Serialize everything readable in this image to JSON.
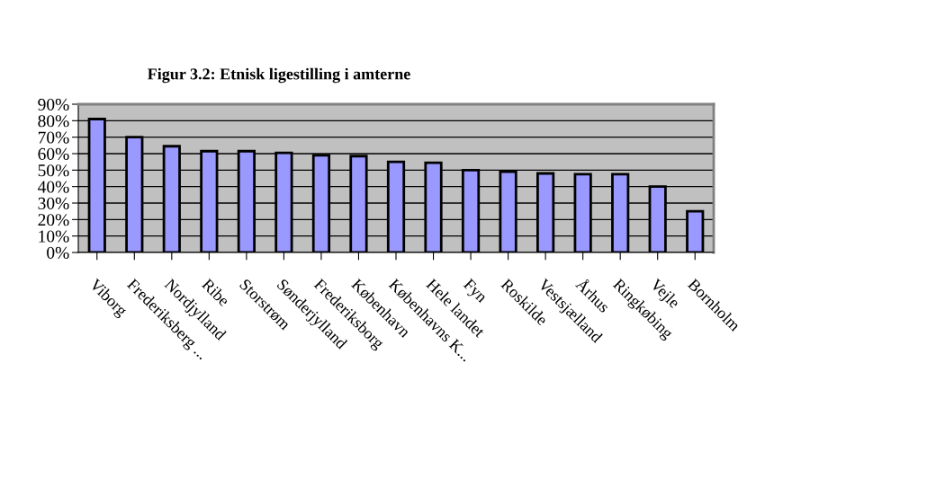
{
  "chart_data": {
    "type": "bar",
    "title": "Figur 3.2: Etnisk ligestilling i amterne",
    "categories": [
      "Viborg",
      "Frederiksberg ...",
      "Nordjylland",
      "Ribe",
      "Storstrøm",
      "Sønderjylland",
      "Frederiksborg",
      "København",
      "Københavns K...",
      "Hele landet",
      "Fyn",
      "Roskilde",
      "Vestsjælland",
      "Århus",
      "Ringkøbing",
      "Vejle",
      "Bornholm"
    ],
    "values": [
      81,
      70,
      64.5,
      61.5,
      61.5,
      60.5,
      59,
      58.5,
      55,
      54.5,
      50,
      49,
      48,
      47.5,
      47.5,
      40,
      25
    ],
    "color": "#9999ff",
    "ylim": [
      0,
      90
    ],
    "yticks": [
      {
        "value": 0,
        "label": "0%"
      },
      {
        "value": 10,
        "label": "10%"
      },
      {
        "value": 20,
        "label": "20%"
      },
      {
        "value": 30,
        "label": "30%"
      },
      {
        "value": 40,
        "label": "40%"
      },
      {
        "value": 50,
        "label": "50%"
      },
      {
        "value": 60,
        "label": "60%"
      },
      {
        "value": 70,
        "label": "70%"
      },
      {
        "value": 80,
        "label": "80%"
      },
      {
        "value": 90,
        "label": "90%"
      }
    ],
    "grid": "y",
    "legend": false
  }
}
